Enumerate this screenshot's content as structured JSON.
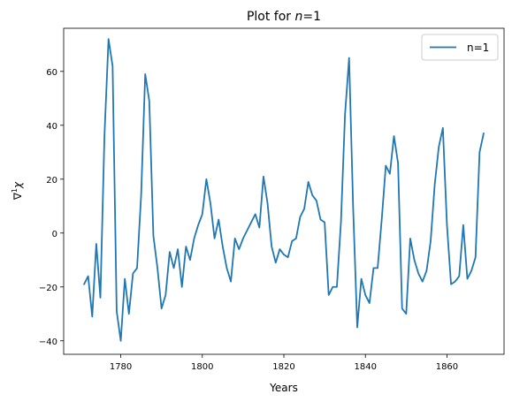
{
  "chart_data": {
    "type": "line",
    "title": "Plot for n=1",
    "title_parts": [
      "Plot for ",
      "n",
      "=1"
    ],
    "xlabel": "Years",
    "ylabel": "∇¹χ",
    "ylabel_parts": [
      "∇",
      "1",
      "χ"
    ],
    "xlim": [
      1766,
      1874
    ],
    "ylim": [
      -45,
      76
    ],
    "xticks": [
      1780,
      1800,
      1820,
      1840,
      1860
    ],
    "yticks": [
      -40,
      -20,
      0,
      20,
      40,
      60
    ],
    "grid": false,
    "legend_position": "top-right",
    "line_color": "#1f77b4",
    "series": [
      {
        "name": "n=1",
        "color": "#1f77b4",
        "x": [
          1771,
          1772,
          1773,
          1774,
          1775,
          1776,
          1777,
          1778,
          1779,
          1780,
          1781,
          1782,
          1783,
          1784,
          1785,
          1786,
          1787,
          1788,
          1789,
          1790,
          1791,
          1792,
          1793,
          1794,
          1795,
          1796,
          1797,
          1798,
          1799,
          1800,
          1801,
          1802,
          1803,
          1804,
          1805,
          1806,
          1807,
          1808,
          1809,
          1810,
          1811,
          1812,
          1813,
          1814,
          1815,
          1816,
          1817,
          1818,
          1819,
          1820,
          1821,
          1822,
          1823,
          1824,
          1825,
          1826,
          1827,
          1828,
          1829,
          1830,
          1831,
          1832,
          1833,
          1834,
          1835,
          1836,
          1837,
          1838,
          1839,
          1840,
          1841,
          1842,
          1843,
          1844,
          1845,
          1846,
          1847,
          1848,
          1849,
          1850,
          1851,
          1852,
          1853,
          1854,
          1855,
          1856,
          1857,
          1858,
          1859,
          1860,
          1861,
          1862,
          1863,
          1864,
          1865,
          1866,
          1867,
          1868,
          1869
        ],
        "y": [
          -19,
          -16,
          -31,
          -4,
          -24,
          36,
          72,
          62,
          -29,
          -40,
          -17,
          -30,
          -15,
          -13,
          14,
          59,
          49,
          -1,
          -13,
          -28,
          -23,
          -7,
          -13,
          -6,
          -20,
          -5,
          -10,
          -2,
          3,
          7,
          20,
          11,
          -2,
          5,
          -5,
          -13,
          -18,
          -2,
          -6,
          -2,
          1,
          4,
          7,
          2,
          21,
          11,
          -5,
          -11,
          -6,
          -8,
          -9,
          -3,
          -2,
          6,
          9,
          19,
          14,
          12,
          5,
          4,
          -23,
          -20,
          -20,
          4,
          44,
          65,
          9,
          -35,
          -17,
          -23,
          -26,
          -13,
          -13,
          5,
          25,
          22,
          36,
          26,
          -28,
          -30,
          -2,
          -10,
          -15,
          -18,
          -14,
          -3,
          18,
          32,
          39,
          3,
          -19,
          -18,
          -16,
          3,
          -17,
          -14,
          -9,
          30,
          37
        ]
      }
    ]
  }
}
